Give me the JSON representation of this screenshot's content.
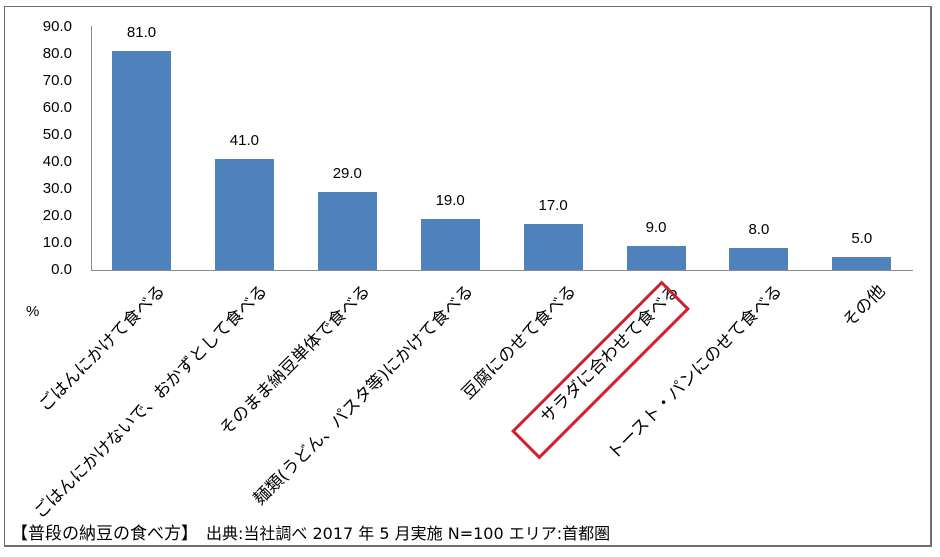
{
  "chart_data": {
    "type": "bar",
    "title": "【普段の納豆の食べ方】",
    "xlabel": "",
    "ylabel": "%",
    "ylim": [
      0,
      90
    ],
    "yticks": [
      "90.0",
      "80.0",
      "70.0",
      "60.0",
      "50.0",
      "40.0",
      "30.0",
      "20.0",
      "10.0",
      "0.0"
    ],
    "categories": [
      "ごはんにかけて食べる",
      "ごはんにかけないで、おかずとして食べる",
      "そのまま納豆単体で食べる",
      "麺類(うどん、パスタ等)にかけて食べる",
      "豆腐にのせて食べる",
      "サラダに合わせて食べる",
      "トースト・パンにのせて食べる",
      "その他"
    ],
    "values": [
      81.0,
      41.0,
      29.0,
      19.0,
      17.0,
      9.0,
      8.0,
      5.0
    ],
    "value_labels": [
      "81.0",
      "41.0",
      "29.0",
      "19.0",
      "17.0",
      "9.0",
      "8.0",
      "5.0"
    ],
    "bar_color": "#4f81bd",
    "highlight": {
      "category": "サラダに合わせて食べる",
      "color": "#d0202a"
    },
    "grid": false,
    "legend": null
  },
  "caption": {
    "title": "【普段の納豆の食べ方】",
    "source": "出典:当社調べ 2017 年 5 月実施 N=100 エリア:首都圏"
  }
}
